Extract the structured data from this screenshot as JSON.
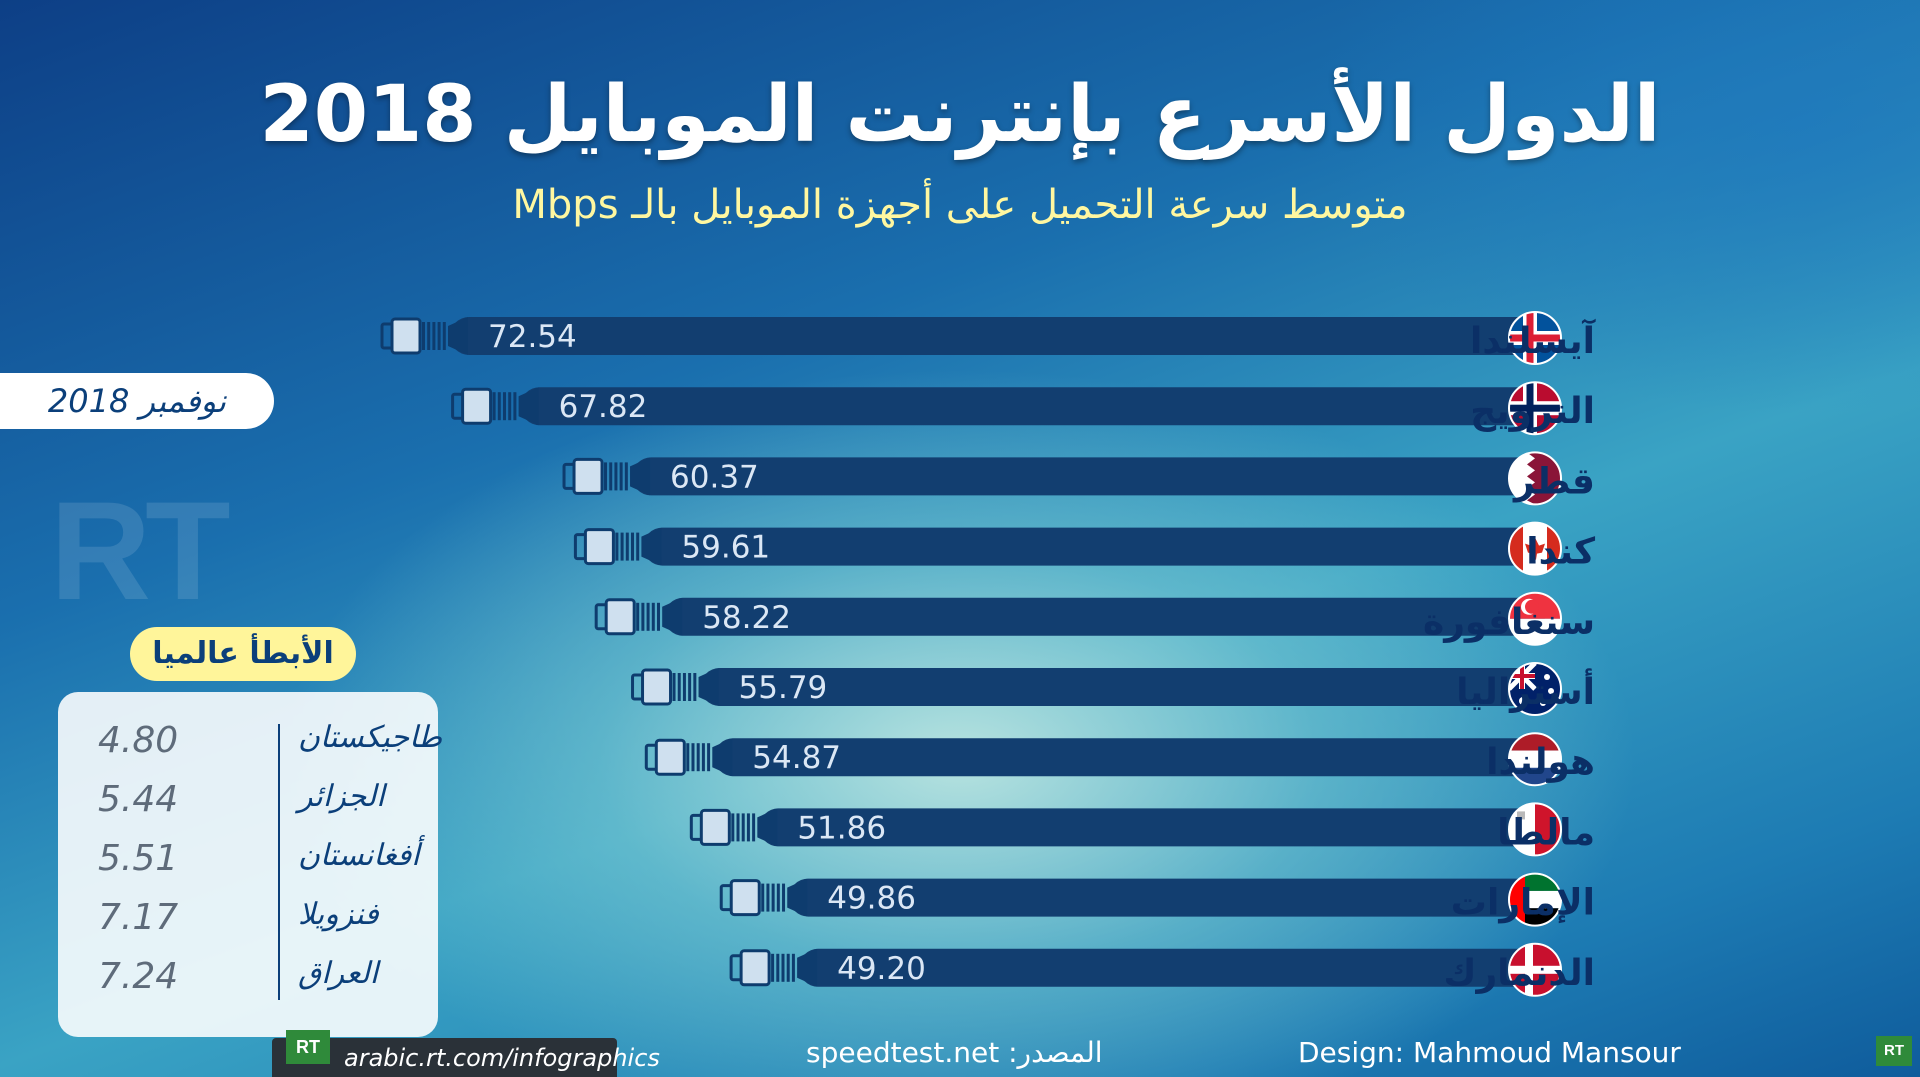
{
  "title": "الدول الأسرع بإنترنت الموبايل 2018",
  "subtitle": "متوسط سرعة التحميل على أجهزة الموبايل بالـ Mbps",
  "date": "نوفمبر 2018",
  "watermark": "RT",
  "slowest": {
    "heading": "الأبطأ عالميا",
    "rows": [
      {
        "country": "طاجيكستان",
        "value": "4.80"
      },
      {
        "country": "الجزائر",
        "value": "5.44"
      },
      {
        "country": "أفغانستان",
        "value": "5.51"
      },
      {
        "country": "فنزويلا",
        "value": "7.17"
      },
      {
        "country": "العراق",
        "value": "7.24"
      }
    ]
  },
  "chart_data": {
    "type": "bar",
    "orientation": "horizontal",
    "title": "الدول الأسرع بإنترنت الموبايل 2018",
    "subtitle": "متوسط سرعة التحميل على أجهزة الموبايل بالـ Mbps",
    "categories": [
      "آيسلندا",
      "النرويج",
      "قطر",
      "كندا",
      "سنغافورة",
      "أستراليا",
      "هولندا",
      "مالطا",
      "الإمارات",
      "الدنمارك"
    ],
    "values": [
      72.54,
      67.82,
      60.37,
      59.61,
      58.22,
      55.79,
      54.87,
      51.86,
      49.86,
      49.2
    ],
    "value_labels": [
      "72.54",
      "67.82",
      "60.37",
      "59.61",
      "58.22",
      "55.79",
      "54.87",
      "51.86",
      "49.86",
      "49.20"
    ],
    "flags": [
      "iceland-flag-icon",
      "norway-flag-icon",
      "qatar-flag-icon",
      "canada-flag-icon",
      "singapore-flag-icon",
      "australia-flag-icon",
      "netherlands-flag-icon",
      "malta-flag-icon",
      "uae-flag-icon",
      "denmark-flag-icon"
    ],
    "bar_color": "#123e70",
    "connector": "ethernet-plug-icon"
  },
  "footer": {
    "url": "arabic.rt.com/infographics",
    "source": "المصدر: speedtest.net",
    "design": "Design: Mahmoud Mansour",
    "logo": "RT"
  }
}
